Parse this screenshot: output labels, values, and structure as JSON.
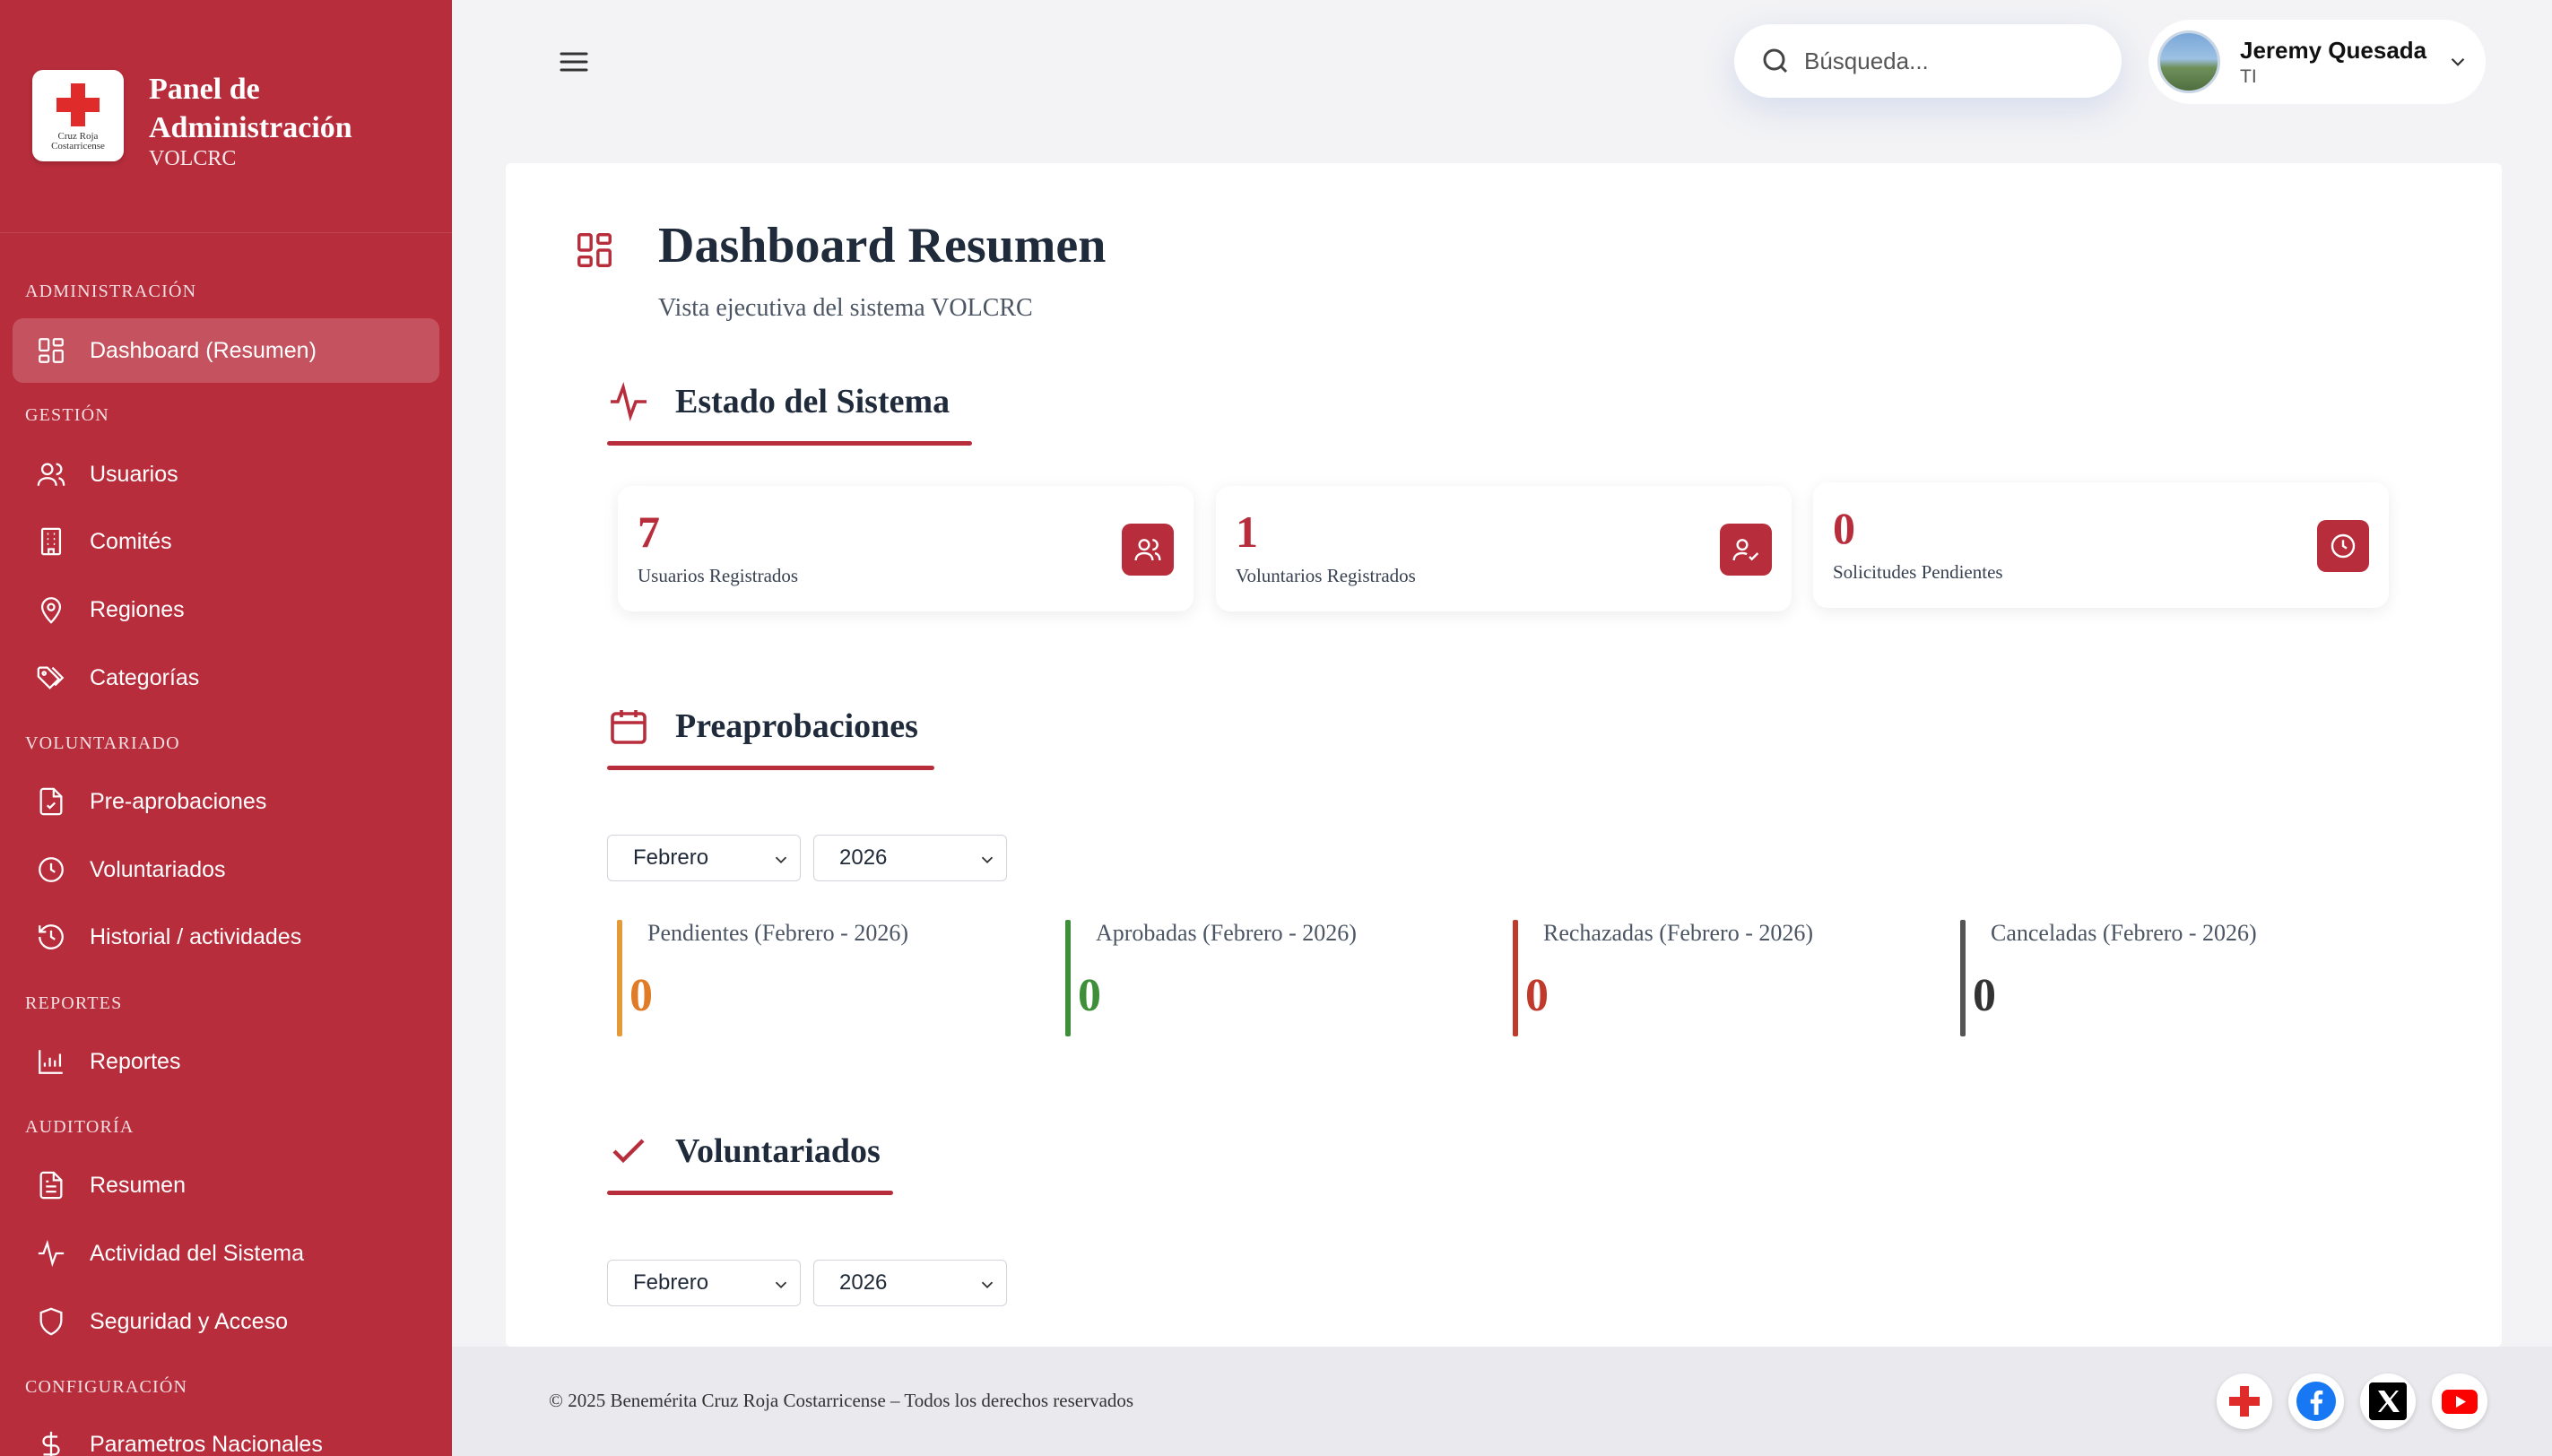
{
  "brand": {
    "title_line1": "Panel de",
    "title_line2": "Administración",
    "subtitle": "VOLCRC",
    "logo_text_line1": "Cruz Roja",
    "logo_text_line2": "Costarricense"
  },
  "sidebar": {
    "sections": [
      {
        "label": "Administración"
      },
      {
        "label": "Gestión"
      },
      {
        "label": "Voluntariado"
      },
      {
        "label": "Reportes"
      },
      {
        "label": "Auditoría"
      },
      {
        "label": "Configuración"
      }
    ],
    "items": [
      {
        "label": "Dashboard (Resumen)",
        "icon": "grid-icon",
        "active": true
      },
      {
        "label": "Usuarios",
        "icon": "users-icon"
      },
      {
        "label": "Comités",
        "icon": "building-icon"
      },
      {
        "label": "Regiones",
        "icon": "map-pin-icon"
      },
      {
        "label": "Categorías",
        "icon": "tags-icon"
      },
      {
        "label": "Pre-aprobaciones",
        "icon": "file-check-icon"
      },
      {
        "label": "Voluntariados",
        "icon": "clock-icon"
      },
      {
        "label": "Historial / actividades",
        "icon": "history-icon"
      },
      {
        "label": "Reportes",
        "icon": "bar-chart-icon"
      },
      {
        "label": "Resumen",
        "icon": "file-text-icon"
      },
      {
        "label": "Actividad del Sistema",
        "icon": "activity-icon"
      },
      {
        "label": "Seguridad y Acceso",
        "icon": "shield-icon"
      },
      {
        "label": "Parametros Nacionales",
        "icon": "dollar-icon"
      }
    ]
  },
  "header": {
    "search_placeholder": "Búsqueda...",
    "user_name": "Jeremy Quesada",
    "user_role": "TI"
  },
  "page": {
    "title": "Dashboard Resumen",
    "subtitle": "Vista ejecutiva del sistema VOLCRC"
  },
  "estado": {
    "title": "Estado del Sistema",
    "stats": [
      {
        "value": "7",
        "label": "Usuarios Registrados",
        "icon": "users-icon"
      },
      {
        "value": "1",
        "label": "Voluntarios Registrados",
        "icon": "user-check-icon"
      },
      {
        "value": "0",
        "label": "Solicitudes Pendientes",
        "icon": "clock-icon"
      }
    ]
  },
  "preaprobaciones": {
    "title": "Preaprobaciones",
    "month": "Febrero",
    "year": "2026",
    "metrics": [
      {
        "label": "Pendientes (Febrero - 2026)",
        "value": "0",
        "color": "#e59a3a"
      },
      {
        "label": "Aprobadas (Febrero - 2026)",
        "value": "0",
        "color": "#3f8f3a"
      },
      {
        "label": "Rechazadas (Febrero - 2026)",
        "value": "0",
        "color": "#c0392b"
      },
      {
        "label": "Canceladas (Febrero - 2026)",
        "value": "0",
        "color": "#555555"
      }
    ]
  },
  "voluntariados": {
    "title": "Voluntariados",
    "month": "Febrero",
    "year": "2026"
  },
  "footer": {
    "copyright": "© 2025 Benemérita Cruz Roja Costarricense – Todos los derechos reservados"
  },
  "colors": {
    "brand_red": "#b82d3c",
    "facebook": "#1877f2",
    "youtube": "#ff0000"
  }
}
